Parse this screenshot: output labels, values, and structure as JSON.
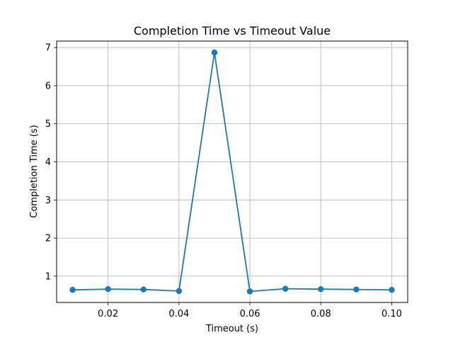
{
  "chart_data": {
    "type": "line",
    "title": "Completion Time vs Timeout Value",
    "xlabel": "Timeout (s)",
    "ylabel": "Completion Time (s)",
    "xlim": [
      0.0055,
      0.1045
    ],
    "ylim": [
      0.31,
      7.17
    ],
    "xticks": [
      0.02,
      0.04,
      0.06,
      0.08,
      0.1
    ],
    "xtick_labels": [
      "0.02",
      "0.04",
      "0.06",
      "0.08",
      "0.10"
    ],
    "yticks": [
      1,
      2,
      3,
      4,
      5,
      6,
      7
    ],
    "ytick_labels": [
      "1",
      "2",
      "3",
      "4",
      "5",
      "6",
      "7"
    ],
    "grid": true,
    "series": [
      {
        "color": "#1f77b4",
        "x": [
          0.01,
          0.02,
          0.03,
          0.04,
          0.05,
          0.06,
          0.07,
          0.08,
          0.09,
          0.1
        ],
        "y": [
          0.64,
          0.66,
          0.65,
          0.61,
          6.87,
          0.6,
          0.67,
          0.66,
          0.65,
          0.64
        ]
      }
    ]
  }
}
